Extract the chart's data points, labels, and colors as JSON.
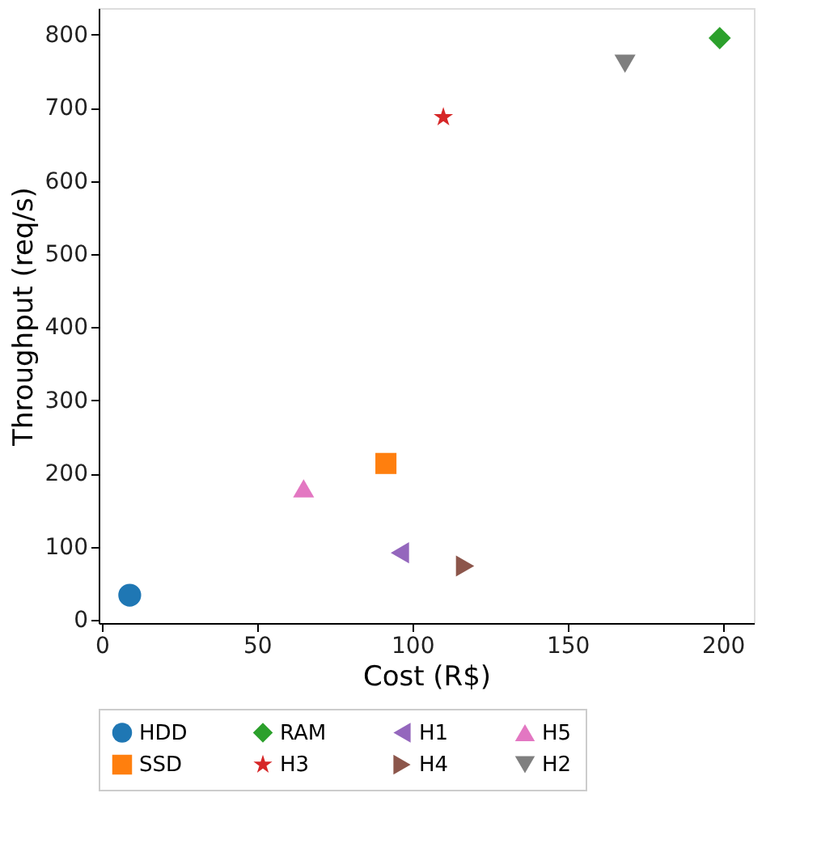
{
  "chart_data": {
    "type": "scatter",
    "xlabel": "Cost (R$)",
    "ylabel": "Throughput (req/s)",
    "xlim": [
      -1,
      210
    ],
    "xticks": [
      0,
      50,
      100,
      150,
      200
    ],
    "ylim": [
      -4,
      836
    ],
    "yticks": [
      0,
      100,
      200,
      300,
      400,
      500,
      600,
      700,
      800
    ],
    "grid": false,
    "legend": "bottom",
    "series": [
      {
        "name": "HDD",
        "color": "#1f77b4",
        "marker": "circle",
        "x": [
          9
        ],
        "values": [
          34
        ]
      },
      {
        "name": "SSD",
        "color": "#ff7f0e",
        "marker": "square",
        "x": [
          91.5
        ],
        "values": [
          214
        ]
      },
      {
        "name": "RAM",
        "color": "#2ca02c",
        "marker": "diamond",
        "x": [
          199
        ],
        "values": [
          795
        ]
      },
      {
        "name": "H3",
        "color": "#d62728",
        "marker": "star",
        "x": [
          110
        ],
        "values": [
          687
        ]
      },
      {
        "name": "H1",
        "color": "#9467bd",
        "marker": "triangle-left",
        "x": [
          96
        ],
        "values": [
          92
        ]
      },
      {
        "name": "H4",
        "color": "#8c564b",
        "marker": "triangle-right",
        "x": [
          117
        ],
        "values": [
          74
        ]
      },
      {
        "name": "H5",
        "color": "#e377c2",
        "marker": "triangle-up",
        "x": [
          65
        ],
        "values": [
          180
        ]
      },
      {
        "name": "H2",
        "color": "#7f7f7f",
        "marker": "triangle-down",
        "x": [
          168.5
        ],
        "values": [
          760
        ]
      }
    ]
  }
}
